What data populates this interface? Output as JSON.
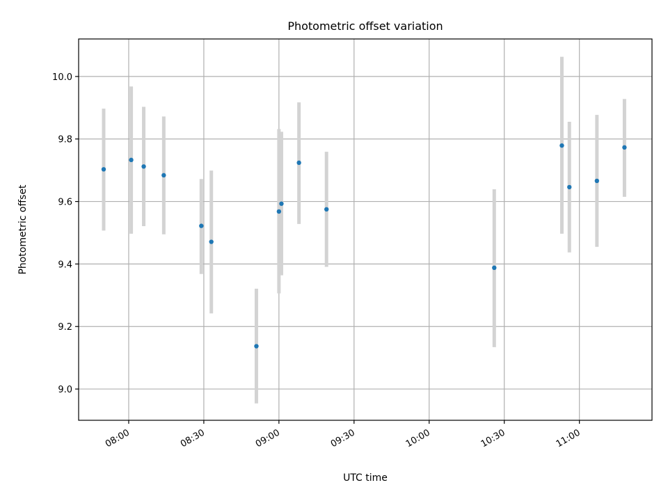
{
  "chart_data": {
    "type": "scatter",
    "title": "Photometric offset variation",
    "xlabel": "UTC time",
    "ylabel": "Photometric offset",
    "x_ticks": [
      "08:00",
      "08:30",
      "09:00",
      "09:30",
      "10:00",
      "10:30",
      "11:00"
    ],
    "y_ticks": [
      "9.0",
      "9.2",
      "9.4",
      "9.6",
      "9.8",
      "10.0"
    ],
    "xlim": [
      "07:40",
      "11:29"
    ],
    "ylim": [
      8.9,
      10.12
    ],
    "grid": true,
    "colors": {
      "points": "#1f77b4",
      "errorbars": "#d3d3d3",
      "grid": "#b0b0b0"
    },
    "series": [
      {
        "points": [
          {
            "x": "07:50",
            "y": 9.703,
            "ylow": 9.507,
            "yhigh": 9.897
          },
          {
            "x": "08:01",
            "y": 9.733,
            "ylow": 9.497,
            "yhigh": 9.968
          },
          {
            "x": "08:06",
            "y": 9.712,
            "ylow": 9.521,
            "yhigh": 9.903
          },
          {
            "x": "08:14",
            "y": 9.684,
            "ylow": 9.495,
            "yhigh": 9.872
          },
          {
            "x": "08:29",
            "y": 9.522,
            "ylow": 9.368,
            "yhigh": 9.672
          },
          {
            "x": "08:33",
            "y": 9.471,
            "ylow": 9.242,
            "yhigh": 9.699
          },
          {
            "x": "08:51",
            "y": 9.137,
            "ylow": 8.954,
            "yhigh": 9.321
          },
          {
            "x": "09:00",
            "y": 9.568,
            "ylow": 9.306,
            "yhigh": 9.832
          },
          {
            "x": "09:01",
            "y": 9.593,
            "ylow": 9.364,
            "yhigh": 9.823
          },
          {
            "x": "09:08",
            "y": 9.724,
            "ylow": 9.528,
            "yhigh": 9.917
          },
          {
            "x": "09:19",
            "y": 9.575,
            "ylow": 9.391,
            "yhigh": 9.759
          },
          {
            "x": "10:26",
            "y": 9.388,
            "ylow": 9.134,
            "yhigh": 9.639
          },
          {
            "x": "10:53",
            "y": 9.779,
            "ylow": 9.497,
            "yhigh": 10.063
          },
          {
            "x": "10:56",
            "y": 9.646,
            "ylow": 9.437,
            "yhigh": 9.855
          },
          {
            "x": "11:07",
            "y": 9.666,
            "ylow": 9.455,
            "yhigh": 9.877
          },
          {
            "x": "11:18",
            "y": 9.773,
            "ylow": 9.615,
            "yhigh": 9.928
          }
        ]
      }
    ]
  }
}
